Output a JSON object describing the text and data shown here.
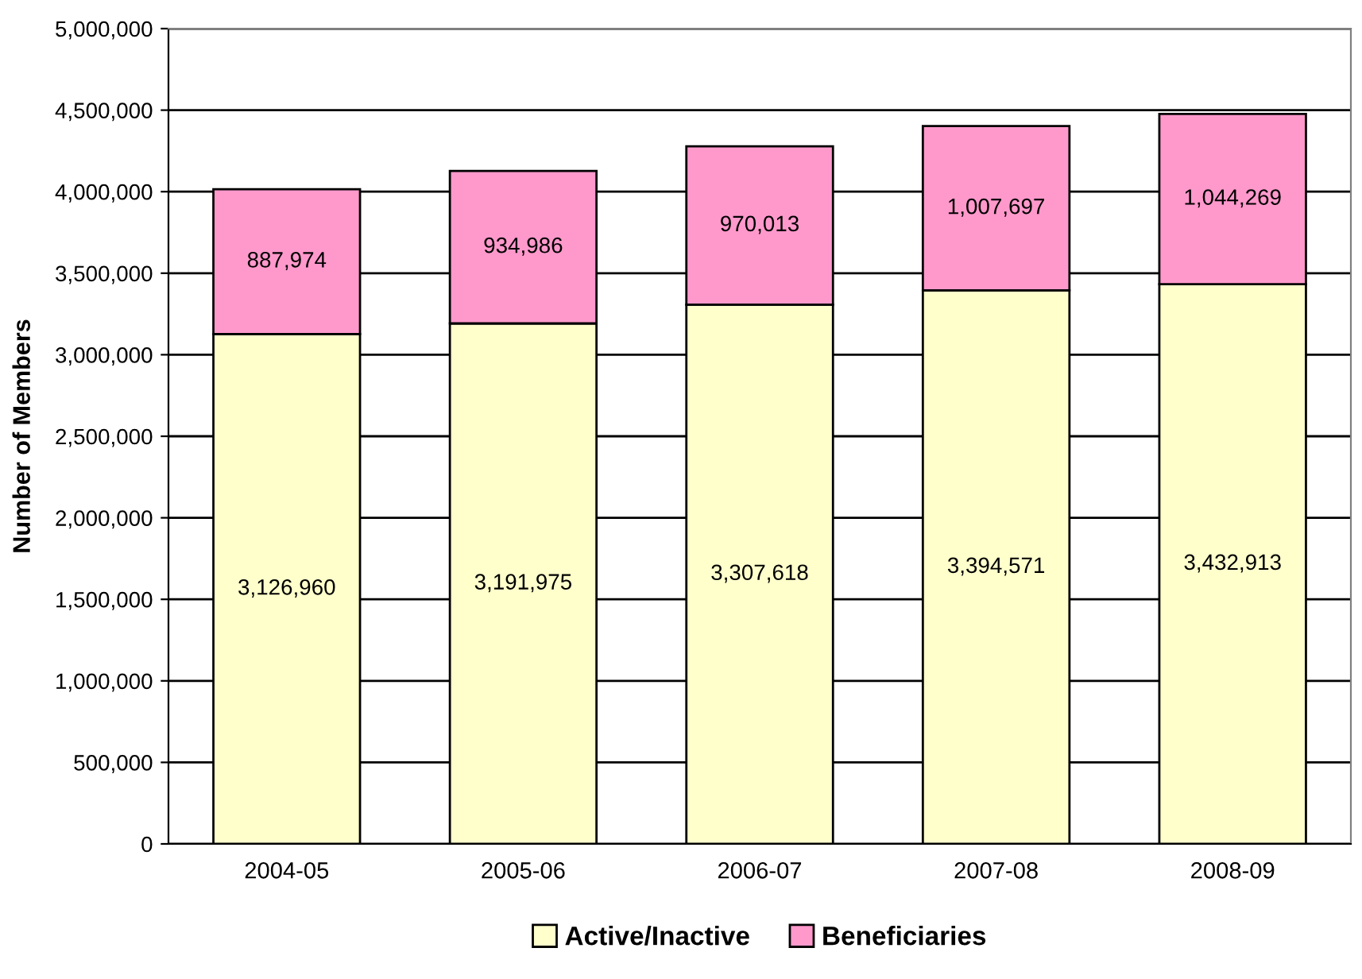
{
  "chart_data": {
    "type": "bar",
    "stacked": true,
    "ylabel": "Number of Members",
    "categories": [
      "2004-05",
      "2005-06",
      "2006-07",
      "2007-08",
      "2008-09"
    ],
    "series": [
      {
        "name": "Active/Inactive",
        "color": "#ffffcc",
        "values": [
          3126960,
          3191975,
          3307618,
          3394571,
          3432913
        ],
        "value_labels": [
          "3,126,960",
          "3,191,975",
          "3,307,618",
          "3,394,571",
          "3,432,913"
        ]
      },
      {
        "name": "Beneficiaries",
        "color": "#ff99cc",
        "values": [
          887974,
          934986,
          970013,
          1007697,
          1044269
        ],
        "value_labels": [
          "887,974",
          "934,986",
          "970,013",
          "1,007,697",
          "1,044,269"
        ]
      }
    ],
    "ylim": [
      0,
      5000000
    ],
    "yticks": [
      {
        "value": 0,
        "label": "0"
      },
      {
        "value": 500000,
        "label": "500,000"
      },
      {
        "value": 1000000,
        "label": "1,000,000"
      },
      {
        "value": 1500000,
        "label": "1,500,000"
      },
      {
        "value": 2000000,
        "label": "2,000,000"
      },
      {
        "value": 2500000,
        "label": "2,500,000"
      },
      {
        "value": 3000000,
        "label": "3,000,000"
      },
      {
        "value": 3500000,
        "label": "3,500,000"
      },
      {
        "value": 4000000,
        "label": "4,000,000"
      },
      {
        "value": 4500000,
        "label": "4,500,000"
      },
      {
        "value": 5000000,
        "label": "5,000,000"
      }
    ],
    "grid": "y",
    "legend": "bottom"
  }
}
